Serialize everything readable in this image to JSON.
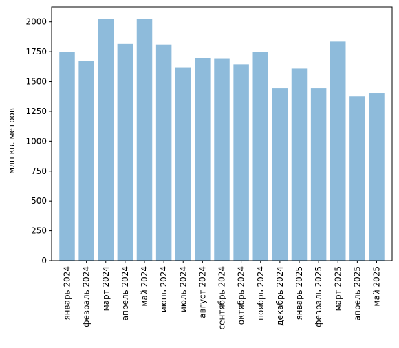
{
  "chart_data": {
    "type": "bar",
    "title": "",
    "xlabel": "",
    "ylabel": "млн кв. метров",
    "ylim": [
      0,
      2125
    ],
    "yticks": [
      0,
      250,
      500,
      750,
      1000,
      1250,
      1500,
      1750,
      2000
    ],
    "grid": false,
    "bar_color": "#8ebbdb",
    "categories": [
      "январь 2024",
      "февраль 2024",
      "март 2024",
      "апрель 2024",
      "май 2024",
      "июнь 2024",
      "июль 2024",
      "август 2024",
      "сентябрь 2024",
      "октябрь 2024",
      "ноябрь 2024",
      "декабрь 2024",
      "январь 2025",
      "февраль 2025",
      "март 2025",
      "апрель 2025",
      "май 2025"
    ],
    "values": [
      1750,
      1670,
      2025,
      1815,
      2025,
      1810,
      1615,
      1695,
      1690,
      1645,
      1745,
      1445,
      1610,
      1445,
      1835,
      1375,
      1405
    ]
  }
}
